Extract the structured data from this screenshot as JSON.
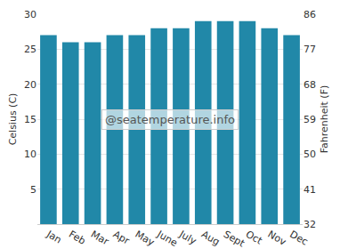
{
  "chart_data": {
    "type": "bar",
    "categories": [
      "Jan",
      "Feb",
      "Mar",
      "Apr",
      "May",
      "June",
      "July",
      "Aug",
      "Sept",
      "Oct",
      "Nov",
      "Dec"
    ],
    "values": [
      27,
      26,
      26,
      27,
      27,
      28,
      28,
      29,
      29,
      29,
      28,
      27
    ],
    "color": "#2188a8",
    "ylim": [
      0,
      30
    ],
    "yticks": [
      5,
      10,
      15,
      20,
      25,
      30
    ],
    "y2lim": [
      32,
      86
    ],
    "y2ticks": [
      32,
      41,
      50,
      59,
      68,
      77,
      86
    ],
    "y_label": "Celsius (C)",
    "y2_label": "Fahrenheit (F)",
    "annotations": [
      "@seatemperature.info"
    ],
    "grid": true
  }
}
